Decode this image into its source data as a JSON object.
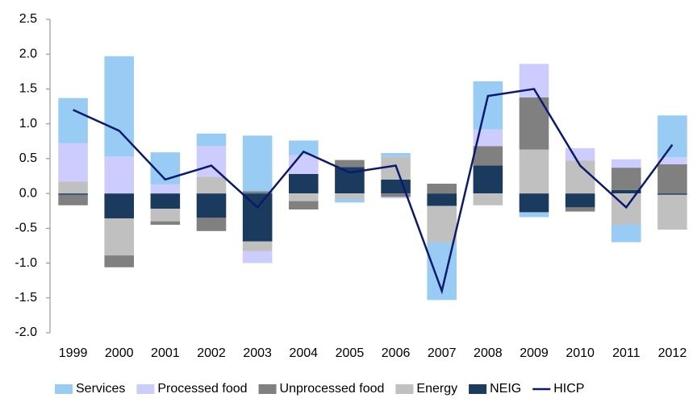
{
  "chart_data": {
    "type": "bar",
    "stacked": true,
    "categories": [
      "1999",
      "2000",
      "2001",
      "2002",
      "2003",
      "2004",
      "2005",
      "2006",
      "2007",
      "2008",
      "2009",
      "2010",
      "2011",
      "2012"
    ],
    "series": [
      {
        "name": "Services",
        "color": "#99ccf5",
        "values": [
          0.65,
          1.44,
          0.46,
          0.18,
          0.8,
          0.21,
          -0.05,
          0.05,
          -0.82,
          0.69,
          -0.07,
          0,
          -0.25,
          0.6
        ]
      },
      {
        "name": "Processed food",
        "color": "#ccccff",
        "values": [
          0.55,
          0.53,
          0.13,
          0.44,
          -0.17,
          0.27,
          0,
          -0.02,
          0,
          0.24,
          0.48,
          0.18,
          0.12,
          0.1
        ]
      },
      {
        "name": "Unprocessed food",
        "color": "#808080",
        "values": [
          -0.15,
          -0.17,
          -0.05,
          -0.19,
          0.03,
          -0.12,
          0.1,
          -0.05,
          0.14,
          0.28,
          0.75,
          -0.06,
          0.32,
          0.42
        ]
      },
      {
        "name": "Energy",
        "color": "#c0c0c0",
        "values": [
          0.17,
          -0.53,
          -0.18,
          0.24,
          -0.14,
          -0.11,
          -0.08,
          0.33,
          -0.53,
          -0.17,
          0.63,
          0.47,
          -0.45,
          -0.5
        ]
      },
      {
        "name": "NEIG",
        "color": "#1a3a5e",
        "values": [
          -0.02,
          -0.36,
          -0.22,
          -0.35,
          -0.69,
          0.28,
          0.38,
          0.2,
          -0.18,
          0.4,
          -0.27,
          -0.2,
          0.05,
          -0.02
        ]
      },
      {
        "name": "HICP",
        "type": "line",
        "color": "#0b1a6e",
        "values": [
          1.2,
          0.9,
          0.2,
          0.4,
          -0.2,
          0.6,
          0.3,
          0.4,
          -1.4,
          1.4,
          1.5,
          0.4,
          -0.2,
          0.7
        ]
      }
    ],
    "ylim": [
      -2.0,
      2.5
    ],
    "yticks": [
      -2.0,
      -1.5,
      -1.0,
      -0.5,
      0.0,
      0.5,
      1.0,
      1.5,
      2.0,
      2.5
    ],
    "ytick_labels_note_free": true,
    "grid": false,
    "legend": "bottom"
  }
}
